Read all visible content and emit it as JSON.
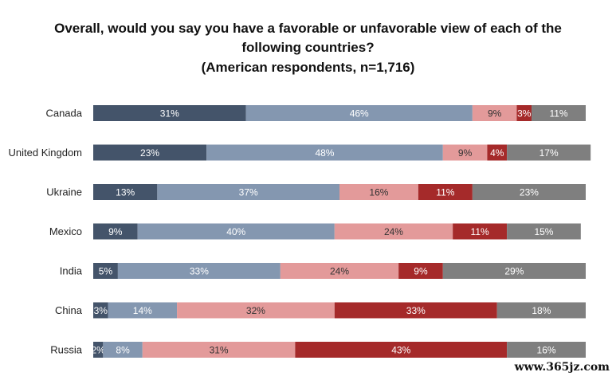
{
  "chart_data": {
    "type": "bar",
    "orientation": "horizontal",
    "stacked": true,
    "title_lines": [
      "Overall, would you say you have a favorable or unfavorable view of each of the",
      "following countries?"
    ],
    "subtitle": "(American respondents, n=1,716)",
    "categories": [
      "Canada",
      "United Kingdom",
      "Ukraine",
      "Mexico",
      "India",
      "China",
      "Russia"
    ],
    "value_suffix": "%",
    "series": [
      {
        "color": "#44546a",
        "values": [
          31,
          23,
          13,
          9,
          5,
          3,
          2
        ]
      },
      {
        "color": "#8497b0",
        "values": [
          46,
          48,
          37,
          40,
          33,
          14,
          8
        ]
      },
      {
        "color": "#e39a9a",
        "values": [
          9,
          9,
          16,
          24,
          24,
          32,
          31
        ]
      },
      {
        "color": "#a52a2a",
        "values": [
          3,
          4,
          11,
          11,
          9,
          33,
          43
        ]
      },
      {
        "color": "#7f7f7f",
        "values": [
          11,
          17,
          23,
          15,
          29,
          18,
          16
        ]
      }
    ],
    "xlim": [
      0,
      100
    ],
    "legend": "none",
    "grid": false
  },
  "watermark": "www.365jz.com"
}
